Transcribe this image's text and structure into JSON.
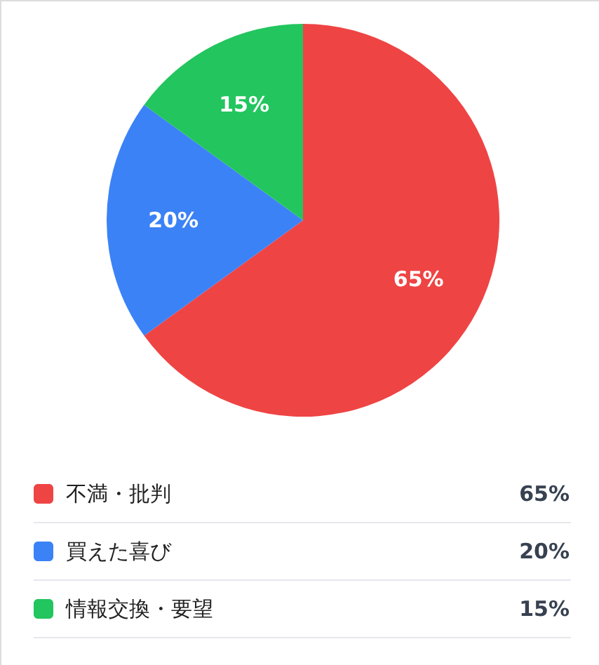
{
  "chart_data": {
    "type": "pie",
    "categories": [
      "不満・批判",
      "買えた喜び",
      "情報交換・要望"
    ],
    "values": [
      65,
      20,
      15
    ],
    "colors": [
      "#ef4444",
      "#3b82f6",
      "#22c55e"
    ],
    "value_labels": [
      "65%",
      "20%",
      "15%"
    ],
    "legend": "bottom"
  }
}
